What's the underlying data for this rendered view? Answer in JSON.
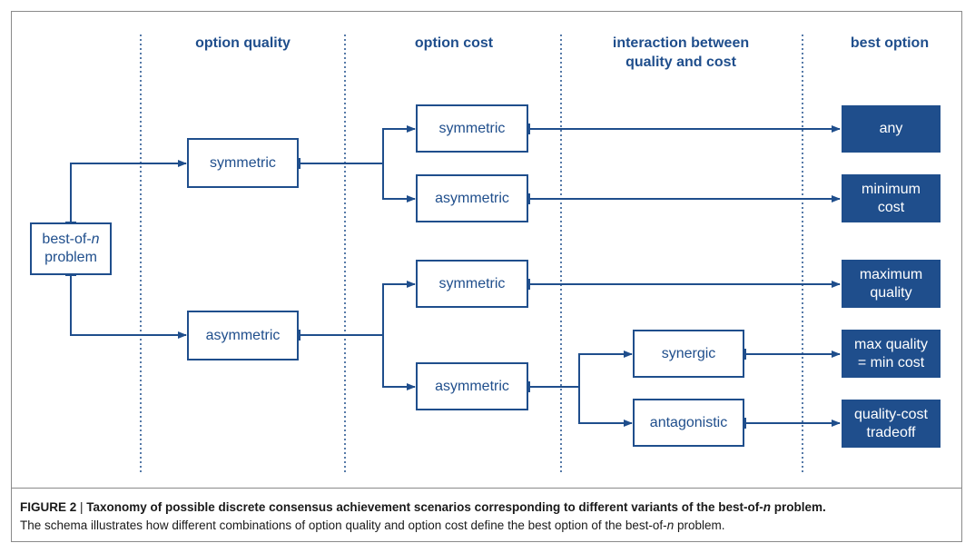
{
  "headers": {
    "option_quality": "option quality",
    "option_cost": "option cost",
    "interaction_line1": "interaction between",
    "interaction_line2": "quality and cost",
    "best_option": "best option"
  },
  "root": {
    "line1_prefix": "best-of-",
    "line1_italic": "n",
    "line2": "problem"
  },
  "quality_nodes": {
    "symmetric": "symmetric",
    "asymmetric": "asymmetric"
  },
  "cost_nodes": {
    "sym_sym": "symmetric",
    "sym_asym": "asymmetric",
    "asym_sym": "symmetric",
    "asym_asym": "asymmetric"
  },
  "interaction_nodes": {
    "synergic": "synergic",
    "antagonistic": "antagonistic"
  },
  "outcomes": {
    "any": "any",
    "min_cost_1": "minimum",
    "min_cost_2": "cost",
    "max_quality_1": "maximum",
    "max_quality_2": "quality",
    "maxq_minc_1": "max quality",
    "maxq_minc_2": "= min cost",
    "tradeoff_1": "quality-cost",
    "tradeoff_2": "tradeoff"
  },
  "caption": {
    "label": "FIGURE 2",
    "sep": " | ",
    "title_prefix": "Taxonomy of possible discrete consensus achievement scenarios corresponding to different variants of the best-of-",
    "title_italic": "n",
    "title_suffix": " problem.",
    "body_prefix": "The schema illustrates how different combinations of option quality and option cost define the best option of the best-of-",
    "body_italic": "n",
    "body_suffix": " problem."
  },
  "colors": {
    "primary": "#1f4e8c",
    "border": "#8a8a8a"
  }
}
